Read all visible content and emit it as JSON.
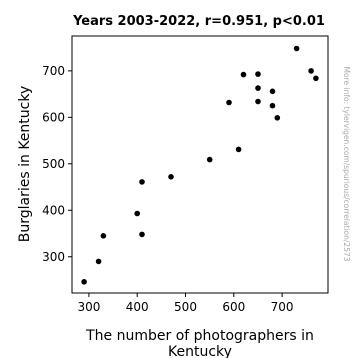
{
  "chart_data": {
    "type": "scatter",
    "title": "Years 2003-2022, r=0.951, p<0.01",
    "xlabel": "The number of photographers in Kentucky",
    "xlabel_lines": [
      "The number of photographers in",
      "Kentucky"
    ],
    "ylabel": "Burglaries in Kentucky",
    "watermark": "More info: tylervigen.com/spurious/correlation/2573",
    "xlim": [
      265,
      795
    ],
    "ylim": [
      222,
      775
    ],
    "xticks": [
      300,
      400,
      500,
      600,
      700
    ],
    "yticks": [
      300,
      400,
      500,
      600,
      700
    ],
    "grid": false,
    "marker_color": "#000000",
    "points": [
      {
        "x": 290,
        "y": 246
      },
      {
        "x": 320,
        "y": 290
      },
      {
        "x": 330,
        "y": 345
      },
      {
        "x": 400,
        "y": 393
      },
      {
        "x": 410,
        "y": 348
      },
      {
        "x": 410,
        "y": 461
      },
      {
        "x": 470,
        "y": 472
      },
      {
        "x": 550,
        "y": 509
      },
      {
        "x": 590,
        "y": 632
      },
      {
        "x": 610,
        "y": 531
      },
      {
        "x": 620,
        "y": 692
      },
      {
        "x": 650,
        "y": 693
      },
      {
        "x": 650,
        "y": 663
      },
      {
        "x": 650,
        "y": 634
      },
      {
        "x": 680,
        "y": 656
      },
      {
        "x": 680,
        "y": 625
      },
      {
        "x": 690,
        "y": 599
      },
      {
        "x": 730,
        "y": 748
      },
      {
        "x": 760,
        "y": 700
      },
      {
        "x": 770,
        "y": 684
      }
    ]
  }
}
